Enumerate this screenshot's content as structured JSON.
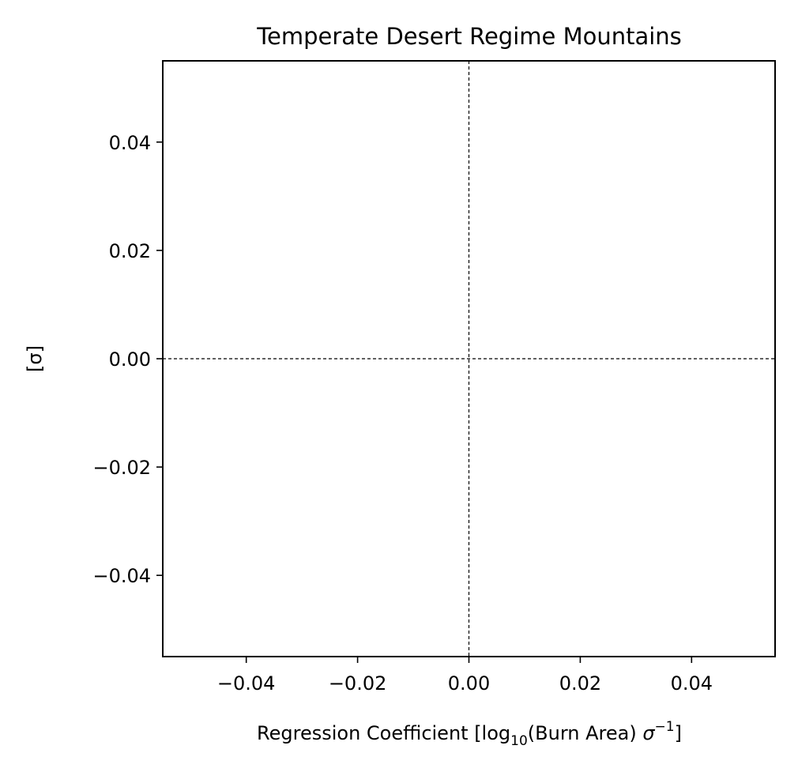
{
  "chart_data": {
    "type": "scatter",
    "title": "Temperate Desert Regime Mountains",
    "xlabel": {
      "prefix": "Regression Coefficient [log",
      "sub": "10",
      "middle": "(Burn Area) ",
      "sigma": "σ",
      "sup": "−1",
      "suffix": "]"
    },
    "ylabel": "[σ]",
    "xlim": [
      -0.055,
      0.055
    ],
    "ylim": [
      -0.055,
      0.055
    ],
    "xticks": [
      -0.04,
      -0.02,
      0.0,
      0.02,
      0.04
    ],
    "yticks": [
      -0.04,
      -0.02,
      0.0,
      0.02,
      0.04
    ],
    "xtick_labels": [
      "−0.04",
      "−0.02",
      "0.00",
      "0.02",
      "0.04"
    ],
    "ytick_labels": [
      "−0.04",
      "−0.02",
      "0.00",
      "0.02",
      "0.04"
    ],
    "reference_lines": [
      {
        "orientation": "vertical",
        "value": 0,
        "style": "dashed"
      },
      {
        "orientation": "horizontal",
        "value": 0,
        "style": "dashed"
      }
    ],
    "series": [],
    "grid": false,
    "colors": {
      "axes": "#000000",
      "background": "#ffffff"
    }
  }
}
